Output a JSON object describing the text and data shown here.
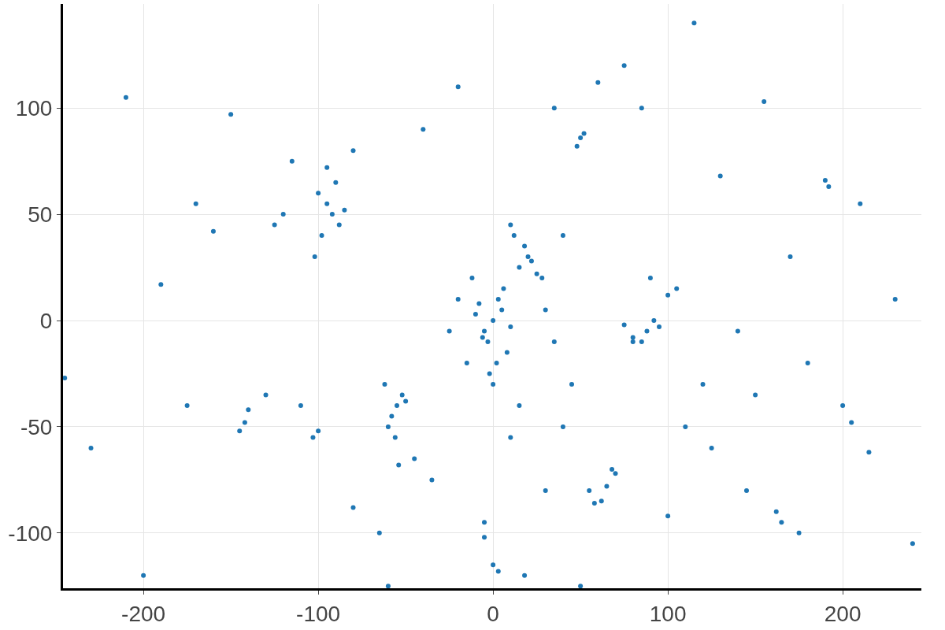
{
  "chart_data": {
    "type": "scatter",
    "x": [
      0,
      5,
      -5,
      10,
      -10,
      3,
      -3,
      8,
      -8,
      15,
      20,
      25,
      18,
      22,
      12,
      28,
      15,
      -2,
      2,
      6,
      -6,
      0,
      30,
      -15,
      -20,
      10,
      -12,
      35,
      40,
      -25,
      -92,
      -95,
      -88,
      -100,
      -85,
      -98,
      -90,
      -102,
      -95,
      -80,
      -55,
      -58,
      -52,
      -60,
      -50,
      -62,
      -56,
      -54,
      -45,
      -35,
      88,
      92,
      85,
      95,
      80,
      90,
      100,
      75,
      80,
      105,
      65,
      62,
      70,
      58,
      55,
      68,
      30,
      40,
      45,
      10,
      50,
      48,
      52,
      85,
      60,
      35,
      -40,
      -20,
      75,
      115,
      -142,
      -145,
      -100,
      -103,
      -140,
      -245,
      -190,
      -175,
      -130,
      -160,
      -170,
      -150,
      -210,
      -120,
      -125,
      -115,
      -110,
      -230,
      -200,
      -80,
      190,
      192,
      155,
      205,
      215,
      165,
      162,
      100,
      110,
      120,
      125,
      140,
      180,
      230,
      210,
      130,
      170,
      200,
      240,
      175,
      -5,
      0,
      3,
      18,
      -60,
      50,
      -65,
      -5,
      145,
      150
    ],
    "values": [
      0,
      5,
      -5,
      -3,
      3,
      10,
      -10,
      -15,
      8,
      25,
      30,
      22,
      35,
      28,
      40,
      20,
      -40,
      -25,
      -20,
      15,
      -8,
      -30,
      5,
      -20,
      10,
      45,
      20,
      -10,
      40,
      -5,
      50,
      55,
      45,
      60,
      52,
      40,
      65,
      30,
      72,
      80,
      -40,
      -45,
      -35,
      -50,
      -38,
      -30,
      -55,
      -68,
      -65,
      -75,
      -5,
      0,
      -10,
      -3,
      -8,
      20,
      12,
      -2,
      -10,
      15,
      -78,
      -85,
      -72,
      -86,
      -80,
      -70,
      -80,
      -50,
      -30,
      -55,
      86,
      82,
      88,
      100,
      112,
      100,
      90,
      110,
      120,
      140,
      -48,
      -52,
      -52,
      -55,
      -42,
      -27,
      17,
      -40,
      -35,
      42,
      55,
      97,
      105,
      50,
      45,
      75,
      -40,
      -60,
      -120,
      -88,
      66,
      63,
      103,
      -48,
      -62,
      -95,
      -90,
      -92,
      -50,
      -30,
      -60,
      -5,
      -20,
      10,
      55,
      68,
      30,
      -40,
      -105,
      -100,
      -102,
      -115,
      -118,
      -120,
      -125,
      -125,
      -100,
      -95,
      -80,
      -35
    ],
    "color": "#1f77b4",
    "xlim": [
      -246,
      245
    ],
    "ylim": [
      -126,
      149
    ],
    "xticks": [
      -200,
      -100,
      0,
      100,
      200
    ],
    "yticks": [
      -100,
      -50,
      0,
      50,
      100
    ],
    "grid": true,
    "marker": "circle",
    "legend": false
  }
}
